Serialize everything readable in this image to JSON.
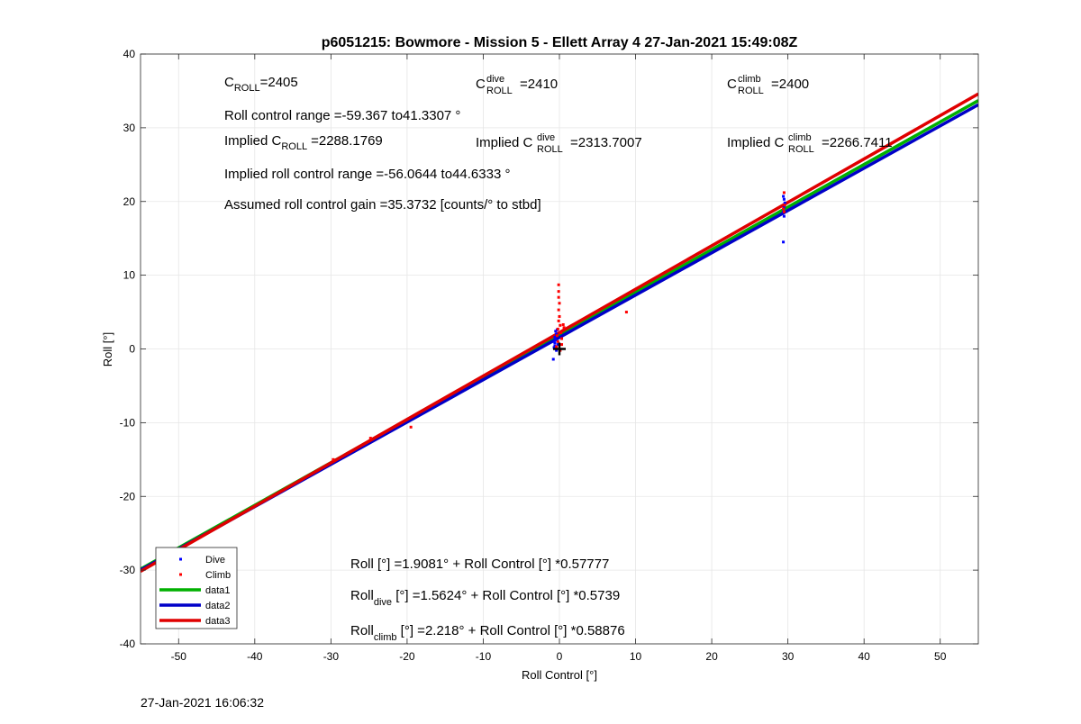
{
  "chart_data": {
    "type": "scatter",
    "title": "p6051215: Bowmore - Mission 5 - Ellett Array 4 27-Jan-2021 15:49:08Z",
    "xlabel": "Roll Control [°]",
    "ylabel": "Roll [°]",
    "xlim": [
      -55,
      55
    ],
    "ylim": [
      -40,
      40
    ],
    "xticks": [
      -50,
      -40,
      -30,
      -20,
      -10,
      0,
      10,
      20,
      30,
      40,
      50
    ],
    "yticks": [
      -40,
      -30,
      -20,
      -10,
      0,
      10,
      20,
      30,
      40
    ],
    "grid": true,
    "legend_position": "bottom-left",
    "series": [
      {
        "name": "Dive",
        "kind": "points",
        "color": "#0000ff",
        "points": [
          [
            -0.8,
            -1.4
          ],
          [
            -0.7,
            0.2
          ],
          [
            -0.6,
            0.8
          ],
          [
            -0.5,
            1.2
          ],
          [
            -0.6,
            1.6
          ],
          [
            -0.4,
            2.0
          ],
          [
            -0.5,
            2.4
          ],
          [
            -0.3,
            2.6
          ],
          [
            -0.7,
            1.0
          ],
          [
            -0.2,
            0.6
          ],
          [
            -0.4,
            -0.2
          ],
          [
            -0.6,
            0.4
          ],
          [
            29.4,
            14.5
          ],
          [
            29.5,
            18.0
          ],
          [
            29.4,
            18.6
          ],
          [
            29.5,
            19.2
          ],
          [
            29.6,
            19.8
          ],
          [
            29.5,
            20.3
          ],
          [
            29.4,
            20.7
          ]
        ]
      },
      {
        "name": "Climb",
        "kind": "points",
        "color": "#ff0000",
        "points": [
          [
            -29.7,
            -15.0
          ],
          [
            -24.8,
            -12.1
          ],
          [
            -19.5,
            -10.6
          ],
          [
            8.8,
            5.0
          ],
          [
            -0.1,
            8.7
          ],
          [
            -0.1,
            7.8
          ],
          [
            -0.1,
            7.0
          ],
          [
            0.0,
            6.2
          ],
          [
            -0.1,
            5.3
          ],
          [
            0.0,
            4.4
          ],
          [
            -0.1,
            3.8
          ],
          [
            0.1,
            3.2
          ],
          [
            -0.2,
            2.7
          ],
          [
            0.2,
            2.2
          ],
          [
            -0.3,
            1.8
          ],
          [
            0.3,
            1.4
          ],
          [
            -0.2,
            1.0
          ],
          [
            0.3,
            0.6
          ],
          [
            -0.4,
            0.3
          ],
          [
            0.1,
            -0.2
          ],
          [
            0.6,
            2.9
          ],
          [
            0.5,
            3.3
          ],
          [
            29.5,
            21.2
          ],
          [
            29.6,
            19.5
          ],
          [
            29.4,
            19.0
          ],
          [
            29.5,
            18.6
          ]
        ]
      },
      {
        "name": "data1",
        "kind": "line",
        "color": "#00b000",
        "intercept": 1.9081,
        "slope": 0.57777
      },
      {
        "name": "data2",
        "kind": "line",
        "color": "#0000c8",
        "intercept": 1.5624,
        "slope": 0.5739
      },
      {
        "name": "data3",
        "kind": "line",
        "color": "#e00000",
        "intercept": 2.218,
        "slope": 0.58876
      }
    ],
    "marker": {
      "symbol": "+",
      "x": 0,
      "y": 0,
      "color": "#000000"
    },
    "annotations": {
      "c_roll": {
        "base": "C",
        "sub": "ROLL",
        "value": "=2405"
      },
      "c_roll_dive": {
        "base": "C",
        "sub": "ROLL",
        "sup": "dive",
        "value": "=2410"
      },
      "c_roll_climb": {
        "base": "C",
        "sub": "ROLL",
        "sup": "climb",
        "value": "=2400"
      },
      "roll_control_range": "Roll control range =-59.367 to41.3307 °",
      "implied_c_roll": {
        "prefix": "Implied C",
        "sub": "ROLL",
        "value": "=2288.1769"
      },
      "implied_c_roll_dive": {
        "prefix": "Implied C",
        "sub": "ROLL",
        "sup": "dive",
        "value": "=2313.7007"
      },
      "implied_c_roll_climb": {
        "prefix": "Implied C",
        "sub": "ROLL",
        "sup": "climb",
        "value": "=2266.7411"
      },
      "implied_roll_range": "Implied roll control range =-56.0644 to44.6333 °",
      "assumed_gain": "Assumed roll control gain =35.3732 [counts/° to stbd]",
      "fit_all": "Roll [°] =1.9081° + Roll Control [°] *0.57777",
      "fit_dive": {
        "base": "Roll",
        "sub": "dive",
        "rest": " [°] =1.5624° + Roll Control [°] *0.5739"
      },
      "fit_climb": {
        "base": "Roll",
        "sub": "climb",
        "rest": " [°] =2.218° + Roll Control [°] *0.58876"
      }
    }
  },
  "footer_timestamp": "27-Jan-2021 16:06:32"
}
